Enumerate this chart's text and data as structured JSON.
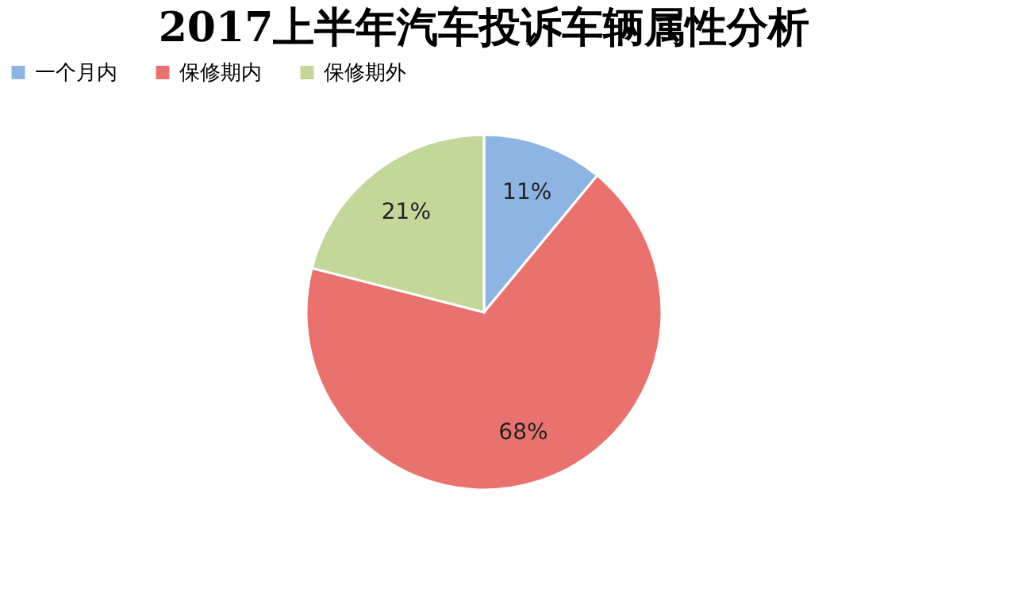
{
  "chart_data": {
    "type": "pie",
    "title": "2017上半年汽车投诉车辆属性分析",
    "categories": [
      "一个月内",
      "保修期内",
      "保修期外"
    ],
    "values": [
      11,
      68,
      21
    ],
    "colors": [
      "#8eb4e3",
      "#e9726f",
      "#c4d79b"
    ],
    "value_labels": [
      "11%",
      "68%",
      "21%"
    ],
    "legend": "top"
  }
}
